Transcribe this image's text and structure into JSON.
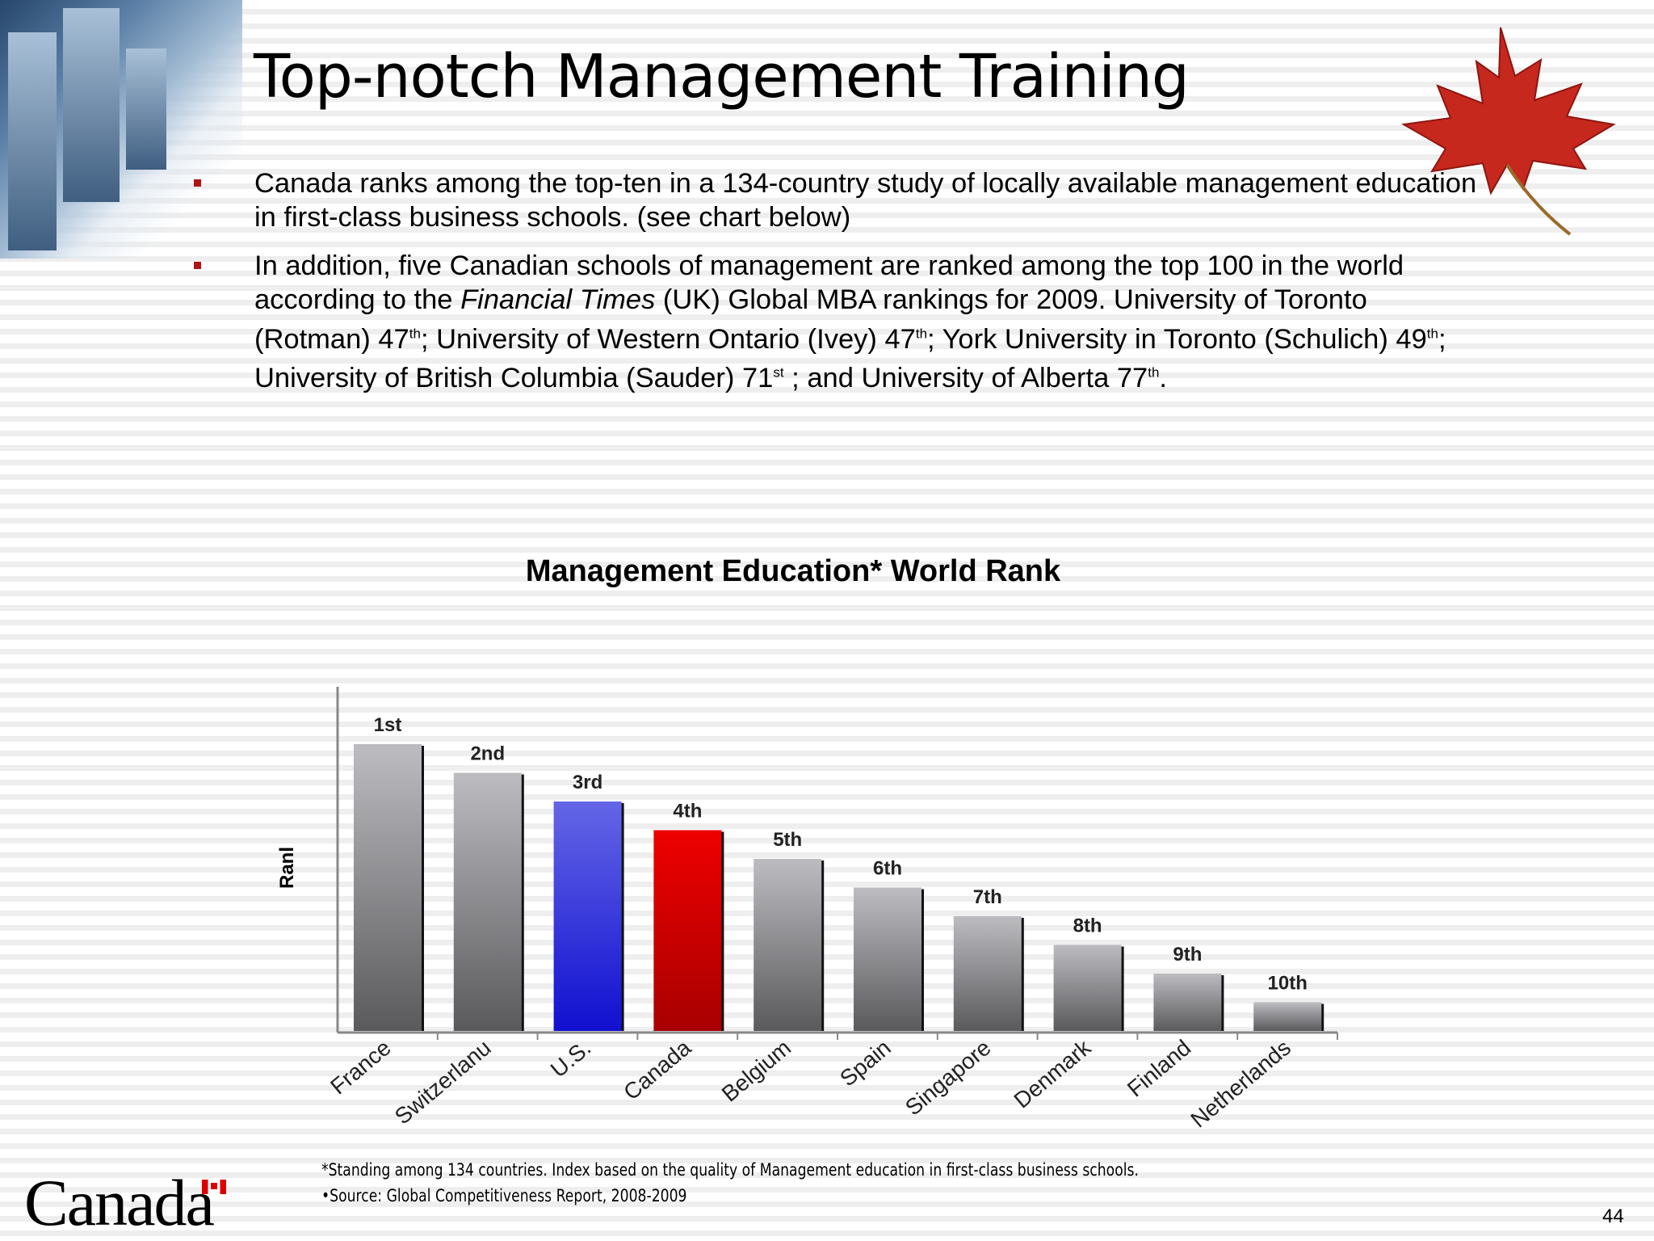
{
  "title": "Top-notch Management Training",
  "bullets": {
    "b1": "Canada ranks among the top-ten in a 134-country study of locally available management education in first-class business schools. (see chart below)",
    "b2": {
      "p1": "In addition, five Canadian schools of management are ranked among the top 100 in the world according to the ",
      "p2": "Financial Times",
      "p3": " (UK) Global MBA rankings for 2009. University of Toronto (Rotman) 47",
      "s1": "th",
      "p4": "; University of Western Ontario (Ivey) 47",
      "s2": "th",
      "p5": "; York University in Toronto (Schulich) 49",
      "s3": "th",
      "p6": "; University of British Columbia (Sauder) 71",
      "s4": "st",
      "p7": " ; and University of Alberta 77",
      "s5": "th",
      "p8": "."
    }
  },
  "chart_data": {
    "type": "bar",
    "title": "Management Education* World Rank",
    "ylabel": "Ranl",
    "categories": [
      "France",
      "Switzerland",
      "U.S.",
      "Canada",
      "Belgium",
      "Spain",
      "Singapore",
      "Denmark",
      "Finland",
      "Netherlands"
    ],
    "category_labels": [
      "France",
      "Switzerlanu",
      "U.S.",
      "Canada",
      "Belgium",
      "Spain",
      "Singapore",
      "Denmark",
      "Finland",
      "Netherlands"
    ],
    "values": [
      1,
      2,
      3,
      4,
      5,
      6,
      7,
      8,
      9,
      10
    ],
    "data_labels": [
      "1st",
      "2nd",
      "3rd",
      "4th",
      "5th",
      "6th",
      "7th",
      "8th",
      "9th",
      "10th"
    ],
    "highlight_colors": {
      "U.S.": "#2a2ae6",
      "Canada": "#cc0000"
    },
    "grid": false,
    "legend": "none"
  },
  "footnotes": {
    "note": "*Standing among 134 countries. Index based on the quality of Management education in first-class business schools.",
    "source": "•Source: Global Competitiveness Report, 2008-2009"
  },
  "logo_text": "Canada",
  "page_number": "44"
}
